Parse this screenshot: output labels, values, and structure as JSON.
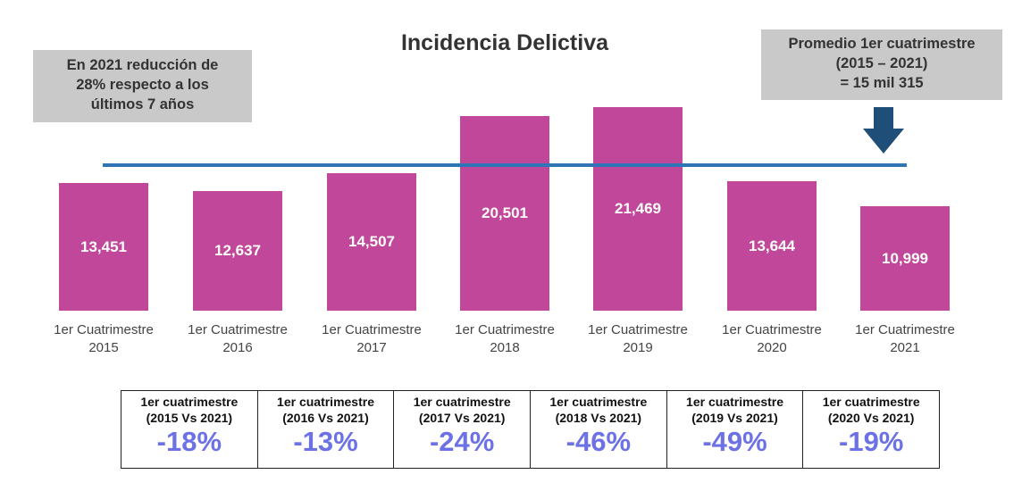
{
  "chart_data": {
    "type": "bar",
    "title": "Incidencia Delictiva",
    "categories": [
      "1er Cuatrimestre 2015",
      "1er Cuatrimestre 2016",
      "1er Cuatrimestre 2017",
      "1er Cuatrimestre 2018",
      "1er Cuatrimestre 2019",
      "1er Cuatrimestre 2020",
      "1er Cuatrimestre 2021"
    ],
    "values": [
      13451,
      12637,
      14507,
      20501,
      21469,
      13644,
      10999
    ],
    "value_labels": [
      "13,451",
      "12,637",
      "14,507",
      "20,501",
      "21,469",
      "13,644",
      "10,999"
    ],
    "color": "#c0479a",
    "average_line": {
      "value": 15315,
      "color": "#2e75b6"
    },
    "annotations": {
      "left": [
        "En 2021 reducción de",
        "28% respecto a los",
        "últimos 7 años"
      ],
      "right": [
        "Promedio 1er cuatrimestre",
        "(2015 – 2021)",
        "= 15 mil 315"
      ]
    }
  },
  "comparison_table": [
    {
      "header": [
        "1er cuatrimestre",
        "(2015 Vs 2021)"
      ],
      "change": "-18%"
    },
    {
      "header": [
        "1er cuatrimestre",
        "(2016 Vs 2021)"
      ],
      "change": "-13%"
    },
    {
      "header": [
        "1er cuatrimestre",
        "(2017 Vs 2021)"
      ],
      "change": "-24%"
    },
    {
      "header": [
        "1er cuatrimestre",
        "(2018 Vs 2021)"
      ],
      "change": "-46%"
    },
    {
      "header": [
        "1er cuatrimestre",
        "(2019 Vs 2021)"
      ],
      "change": "-49%"
    },
    {
      "header": [
        "1er cuatrimestre",
        "(2020 Vs 2021)"
      ],
      "change": "-19%"
    }
  ]
}
